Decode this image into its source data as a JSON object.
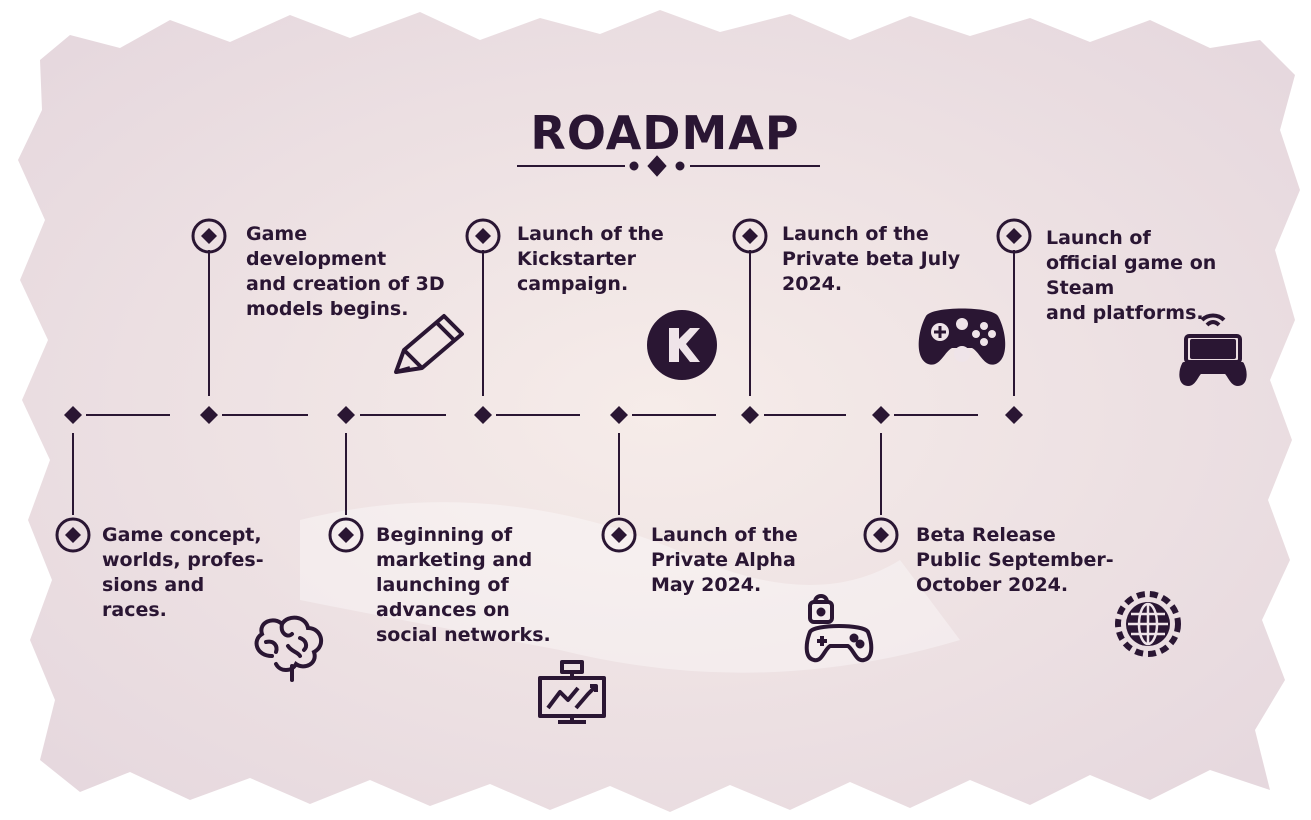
{
  "title": "ROADMAP",
  "colors": {
    "ink": "#2a1633",
    "paper": "#efe4e9",
    "paper_edge": "#e2d2db"
  },
  "milestones": [
    {
      "id": "concept",
      "position": "bottom",
      "text": "Game concept,\nworlds, profes-\nsions and\nraces.",
      "icon": "brain-icon"
    },
    {
      "id": "development",
      "position": "top",
      "text": "Game\ndevelopment\nand creation of 3D\nmodels begins.",
      "icon": "pencil-icon"
    },
    {
      "id": "marketing",
      "position": "bottom",
      "text": "Beginning of\nmarketing and\nlaunching of\nadvances on\nsocial networks.",
      "icon": "monitor-chart-icon"
    },
    {
      "id": "kickstarter",
      "position": "top",
      "text": "Launch of the\nKickstarter\ncampaign.",
      "icon": "kickstarter-icon"
    },
    {
      "id": "alpha",
      "position": "bottom",
      "text": "Launch of the\nPrivate Alpha\nMay 2024.",
      "icon": "locked-gamepad-icon"
    },
    {
      "id": "private-beta",
      "position": "top",
      "text": "Launch of the\nPrivate beta July\n2024.",
      "icon": "gamepad-icon"
    },
    {
      "id": "public-beta",
      "position": "bottom",
      "text": "Beta Release\nPublic September-\nOctober 2024.",
      "icon": "globe-gear-icon"
    },
    {
      "id": "official",
      "position": "top",
      "text": "Launch of\nofficial game on\nSteam\nand platforms.",
      "icon": "handheld-console-icon"
    }
  ]
}
